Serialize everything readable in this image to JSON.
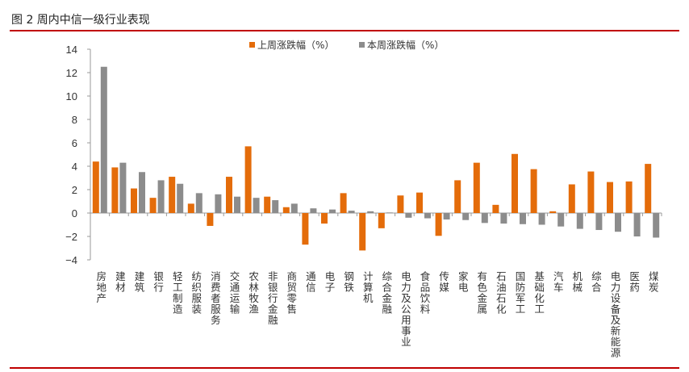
{
  "title": "图 2  周内中信一级行业表现",
  "chart_data": {
    "type": "bar",
    "title": "",
    "xlabel": "",
    "ylabel": "",
    "ylim": [
      -4,
      14
    ],
    "yticks": [
      -4,
      -2,
      0,
      2,
      4,
      6,
      8,
      10,
      12,
      14
    ],
    "grid": false,
    "legend": "top",
    "categories": [
      "房地产",
      "建材",
      "建筑",
      "银行",
      "轻工制造",
      "纺织服装",
      "消费者服务",
      "交通运输",
      "农林牧渔",
      "非银行金融",
      "商贸零售",
      "通信",
      "电子",
      "钢铁",
      "计算机",
      "综合金融",
      "电力及公用事业",
      "食品饮料",
      "传媒",
      "家电",
      "有色金属",
      "石油石化",
      "国防军工",
      "基础化工",
      "汽车",
      "机械",
      "综合",
      "电力设备及新能源",
      "医药",
      "煤炭"
    ],
    "series": [
      {
        "name": "上周涨跌幅（%）",
        "color": "#e46c0a",
        "values": [
          4.4,
          3.9,
          2.1,
          1.3,
          3.1,
          0.8,
          -1.1,
          3.1,
          5.7,
          1.4,
          0.5,
          -2.7,
          -0.9,
          1.7,
          -3.2,
          -1.3,
          1.5,
          1.75,
          -1.95,
          2.8,
          4.3,
          0.7,
          5.05,
          3.75,
          0.15,
          2.45,
          3.55,
          2.65,
          2.7,
          4.2
        ]
      },
      {
        "name": "本周涨跌幅（%）",
        "color": "#8c8c8c",
        "values": [
          12.5,
          4.3,
          3.5,
          2.8,
          2.5,
          1.7,
          1.6,
          1.4,
          1.3,
          1.1,
          0.8,
          0.4,
          0.3,
          0.2,
          0.15,
          0.05,
          -0.4,
          -0.45,
          -0.55,
          -0.6,
          -0.85,
          -0.9,
          -0.95,
          -1.0,
          -1.15,
          -1.35,
          -1.45,
          -1.6,
          -2.0,
          -2.1
        ]
      }
    ]
  }
}
